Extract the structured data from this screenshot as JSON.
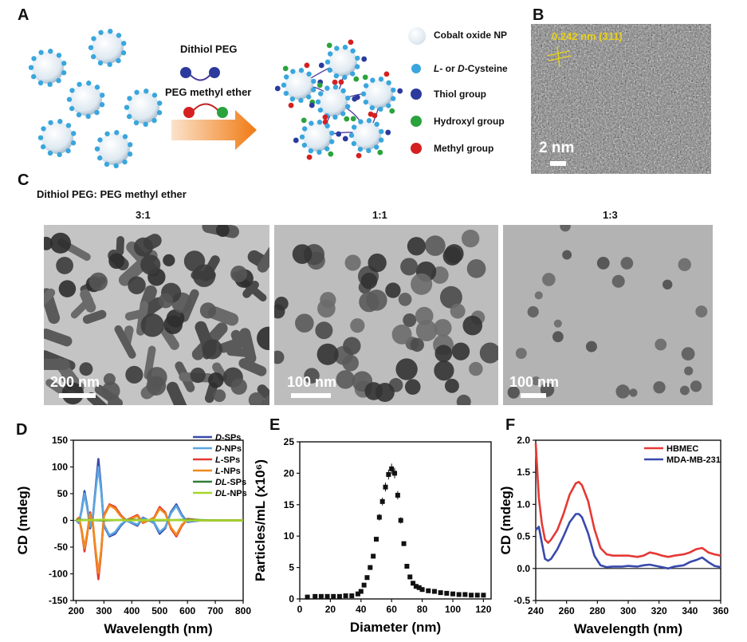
{
  "panels": {
    "A": "A",
    "B": "B",
    "C": "C",
    "D": "D",
    "E": "E",
    "F": "F"
  },
  "panelA": {
    "reagent1": "Dithiol PEG",
    "reagent2": "PEG methyl ether",
    "legend": [
      {
        "label": "Cobalt oxide NP",
        "color": "#dfe9f1"
      },
      {
        "label_html": "<i>L</i>- or <i>D</i>-Cysteine",
        "label": "L- or D-Cysteine",
        "color": "#3aa6dd"
      },
      {
        "label": "Thiol group",
        "color": "#2b3a9c"
      },
      {
        "label": "Hydroxyl group",
        "color": "#2aa33c"
      },
      {
        "label": "Methyl group",
        "color": "#d42020"
      }
    ]
  },
  "panelB": {
    "lattice": "0.242 nm (311)",
    "scale": "2 nm"
  },
  "panelC": {
    "title": "Dithiol PEG: PEG methyl ether",
    "images": [
      {
        "ratio": "3:1",
        "scale": "200 nm"
      },
      {
        "ratio": "1:1",
        "scale": "100 nm"
      },
      {
        "ratio": "1:3",
        "scale": "100 nm"
      }
    ]
  },
  "chart_data": [
    {
      "type": "line",
      "panel": "D",
      "xlabel": "Wavelength (nm)",
      "ylabel": "CD (mdeg)",
      "xlim": [
        190,
        800
      ],
      "ylim": [
        -150,
        150
      ],
      "xticks": [
        200,
        300,
        400,
        500,
        600,
        700,
        800
      ],
      "yticks": [
        -150,
        -100,
        -50,
        0,
        50,
        100,
        150
      ],
      "legend_position": "top-right",
      "series": [
        {
          "name": "D-SPs",
          "color": "#3949ab",
          "x": [
            200,
            210,
            220,
            230,
            240,
            250,
            260,
            270,
            280,
            290,
            300,
            320,
            340,
            360,
            380,
            400,
            420,
            440,
            460,
            480,
            500,
            520,
            540,
            560,
            580,
            600,
            650,
            700,
            750,
            800
          ],
          "y": [
            0,
            -5,
            20,
            55,
            25,
            -15,
            5,
            60,
            115,
            60,
            -10,
            -30,
            -25,
            -10,
            0,
            -5,
            -10,
            5,
            0,
            -5,
            -25,
            -15,
            15,
            30,
            10,
            -3,
            0,
            0,
            0,
            0
          ]
        },
        {
          "name": "D-NPs",
          "color": "#5aa6e0",
          "x": [
            200,
            210,
            220,
            230,
            240,
            250,
            260,
            270,
            280,
            290,
            300,
            320,
            340,
            360,
            380,
            400,
            420,
            440,
            460,
            480,
            500,
            520,
            540,
            560,
            580,
            600,
            650,
            700,
            750,
            800
          ],
          "y": [
            0,
            -4,
            18,
            50,
            22,
            -12,
            4,
            55,
            100,
            55,
            -8,
            -28,
            -22,
            -8,
            0,
            -4,
            -8,
            4,
            0,
            -4,
            -22,
            -13,
            13,
            27,
            8,
            -2,
            0,
            0,
            0,
            0
          ]
        },
        {
          "name": "L-SPs",
          "color": "#e53935",
          "x": [
            200,
            210,
            220,
            230,
            240,
            250,
            260,
            270,
            280,
            290,
            300,
            320,
            340,
            360,
            380,
            400,
            420,
            440,
            460,
            480,
            500,
            520,
            540,
            560,
            580,
            600,
            650,
            700,
            750,
            800
          ],
          "y": [
            0,
            5,
            -20,
            -58,
            -25,
            15,
            -5,
            -60,
            -110,
            -60,
            10,
            30,
            25,
            10,
            0,
            5,
            10,
            -5,
            0,
            5,
            25,
            15,
            -15,
            -30,
            -10,
            3,
            0,
            0,
            0,
            0
          ]
        },
        {
          "name": "L-NPs",
          "color": "#f08a1c",
          "x": [
            200,
            210,
            220,
            230,
            240,
            250,
            260,
            270,
            280,
            290,
            300,
            320,
            340,
            360,
            380,
            400,
            420,
            440,
            460,
            480,
            500,
            520,
            540,
            560,
            580,
            600,
            650,
            700,
            750,
            800
          ],
          "y": [
            0,
            4,
            -18,
            -52,
            -22,
            12,
            -4,
            -55,
            -98,
            -55,
            8,
            28,
            22,
            8,
            0,
            4,
            8,
            -4,
            0,
            4,
            22,
            13,
            -13,
            -27,
            -8,
            2,
            0,
            0,
            0,
            0
          ]
        },
        {
          "name": "DL-SPs",
          "color": "#2e7d32",
          "x": [
            200,
            300,
            400,
            500,
            600,
            700,
            800
          ],
          "y": [
            1,
            0,
            1,
            0,
            1,
            0,
            0
          ]
        },
        {
          "name": "DL-NPs",
          "color": "#a5d62a",
          "x": [
            200,
            300,
            400,
            500,
            600,
            700,
            800
          ],
          "y": [
            0,
            1,
            0,
            1,
            0,
            0,
            0
          ]
        }
      ]
    },
    {
      "type": "scatter",
      "panel": "E",
      "xlabel": "Diameter (nm)",
      "ylabel": "Particles/mL (x10⁶)",
      "xlim": [
        0,
        125
      ],
      "ylim": [
        0,
        25
      ],
      "xticks": [
        0,
        20,
        40,
        60,
        80,
        100,
        120
      ],
      "yticks": [
        0,
        5,
        10,
        15,
        20,
        25
      ],
      "series": [
        {
          "name": "",
          "color": "#111111",
          "x": [
            5,
            10,
            14,
            18,
            22,
            26,
            30,
            34,
            38,
            40,
            42,
            44,
            46,
            48,
            50,
            52,
            54,
            56,
            58,
            60,
            62,
            64,
            66,
            68,
            70,
            72,
            74,
            76,
            78,
            80,
            84,
            88,
            92,
            96,
            100,
            104,
            108,
            112,
            116,
            120
          ],
          "y": [
            0.3,
            0.4,
            0.4,
            0.4,
            0.4,
            0.4,
            0.5,
            0.5,
            0.8,
            1.2,
            2.2,
            3.4,
            5.0,
            6.8,
            9.5,
            13.0,
            15.5,
            17.8,
            19.8,
            20.7,
            20.0,
            16.5,
            12.5,
            8.8,
            5.2,
            3.5,
            2.5,
            2.0,
            1.8,
            1.5,
            1.3,
            1.2,
            1.0,
            0.9,
            0.8,
            0.7,
            0.7,
            0.6,
            0.6,
            0.6
          ]
        }
      ]
    },
    {
      "type": "line",
      "panel": "F",
      "xlabel": "Wavelength (nm)",
      "ylabel": "CD (mdeg)",
      "xlim": [
        240,
        360
      ],
      "ylim": [
        -0.5,
        2.0
      ],
      "xticks": [
        240,
        260,
        280,
        300,
        320,
        340,
        360
      ],
      "yticks": [
        -0.5,
        0.0,
        0.5,
        1.0,
        1.5,
        2.0
      ],
      "legend_position": "top-right",
      "series": [
        {
          "name": "HBMEC",
          "color": "#e53935",
          "x": [
            240,
            242,
            244,
            246,
            248,
            250,
            254,
            258,
            262,
            266,
            268,
            270,
            274,
            278,
            282,
            286,
            290,
            296,
            300,
            306,
            310,
            314,
            318,
            322,
            326,
            330,
            336,
            340,
            344,
            348,
            352,
            356,
            360
          ],
          "y": [
            1.95,
            1.1,
            0.7,
            0.45,
            0.4,
            0.45,
            0.6,
            0.85,
            1.15,
            1.33,
            1.35,
            1.3,
            1.05,
            0.62,
            0.32,
            0.22,
            0.2,
            0.2,
            0.2,
            0.18,
            0.2,
            0.25,
            0.23,
            0.2,
            0.18,
            0.2,
            0.22,
            0.25,
            0.3,
            0.32,
            0.25,
            0.22,
            0.2
          ]
        },
        {
          "name": "MDA-MB-231",
          "color": "#3949ab",
          "x": [
            240,
            242,
            244,
            246,
            248,
            250,
            254,
            258,
            262,
            266,
            268,
            270,
            274,
            278,
            282,
            286,
            290,
            296,
            300,
            306,
            310,
            314,
            318,
            322,
            326,
            330,
            336,
            340,
            344,
            348,
            352,
            356,
            360
          ],
          "y": [
            0.6,
            0.65,
            0.4,
            0.15,
            0.12,
            0.15,
            0.3,
            0.5,
            0.72,
            0.85,
            0.85,
            0.8,
            0.55,
            0.2,
            0.05,
            0.02,
            0.03,
            0.03,
            0.04,
            0.03,
            0.05,
            0.06,
            0.04,
            0.02,
            0.0,
            0.03,
            0.05,
            0.1,
            0.13,
            0.17,
            0.1,
            0.04,
            0.02
          ]
        }
      ]
    }
  ]
}
